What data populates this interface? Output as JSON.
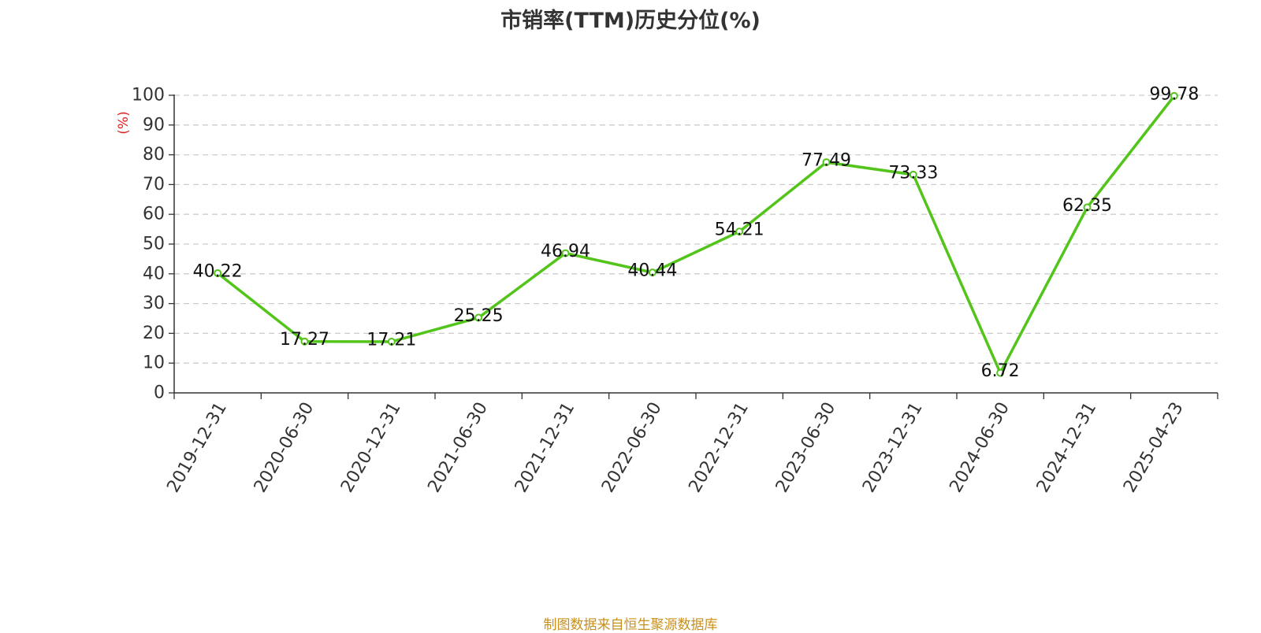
{
  "chart_data": {
    "type": "line",
    "title": "市销率(TTM)历史分位(%)",
    "ylabel": "(%)",
    "xlabel": "",
    "ylim": [
      0,
      100
    ],
    "yticks": [
      0,
      10,
      20,
      30,
      40,
      50,
      60,
      70,
      80,
      90,
      100
    ],
    "grid": true,
    "categories": [
      "2019-12-31",
      "2020-06-30",
      "2020-12-31",
      "2021-06-30",
      "2021-12-31",
      "2022-06-30",
      "2022-12-31",
      "2023-06-30",
      "2023-12-31",
      "2024-06-30",
      "2024-12-31",
      "2025-04-23"
    ],
    "series": [
      {
        "values": [
          40.22,
          17.27,
          17.21,
          25.25,
          46.94,
          40.44,
          54.21,
          77.49,
          73.33,
          6.72,
          62.35,
          99.78
        ],
        "labels": [
          "40.22",
          "17.27",
          "17.21",
          "25.25",
          "46.94",
          "40.44",
          "54.21",
          "77.49",
          "73.33",
          "6.72",
          "62.35",
          "99.78"
        ],
        "color": "#52c41a"
      }
    ],
    "unit_color": "#e02020",
    "source": "制图数据来自恒生聚源数据库",
    "source_color": "#c8901e"
  }
}
